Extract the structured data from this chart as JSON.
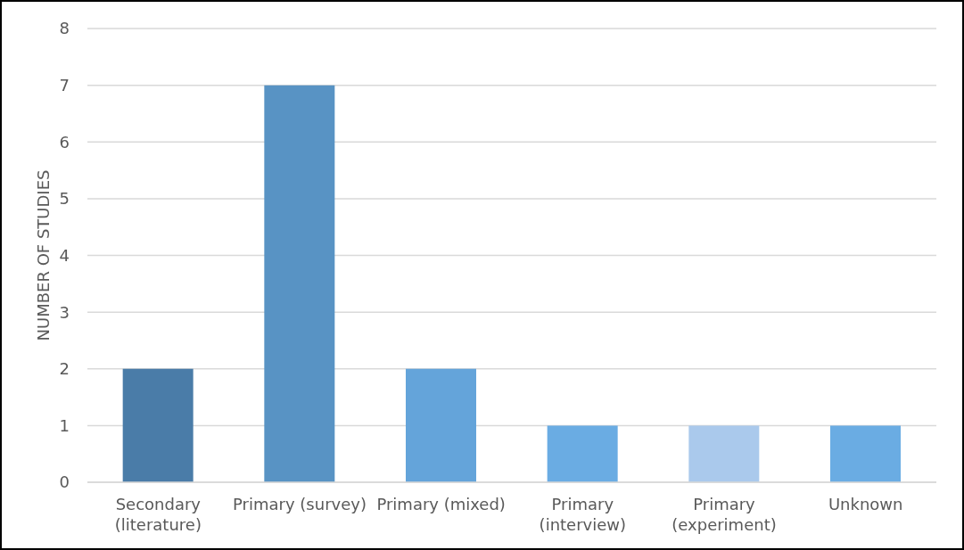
{
  "chart_data": {
    "type": "bar",
    "ylabel": "NUMBER OF STUDIES",
    "categories": [
      "Secondary (literature)",
      "Primary (survey)",
      "Primary (mixed)",
      "Primary (interview)",
      "Primary (experiment)",
      "Unknown"
    ],
    "values": [
      2,
      7,
      2,
      1,
      1,
      1
    ],
    "colors": [
      "#4a7ca8",
      "#5893c4",
      "#64a4da",
      "#6aace3",
      "#aac9ec",
      "#6aace3"
    ],
    "ylim": [
      0,
      8
    ],
    "yticks": [
      0,
      1,
      2,
      3,
      4,
      5,
      6,
      7,
      8
    ],
    "grid": "y",
    "legend": false
  }
}
